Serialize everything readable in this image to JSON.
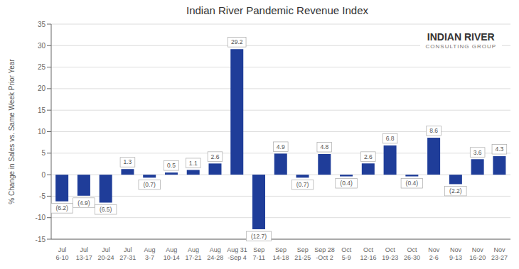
{
  "chart_data": {
    "type": "bar",
    "title": "Indian River Pandemic Revenue Index",
    "ylabel": "% Change in Sales vs. Same Week Prior Year",
    "categories": [
      "Jul\n6-10",
      "Jul\n13-17",
      "Jul\n20-24",
      "Jul\n27-31",
      "Aug\n3-7",
      "Aug\n10-14",
      "Aug\n17-21",
      "Aug\n24-28",
      "Aug 31\n-Sep 4",
      "Sep\n7-11",
      "Sep\n14-18",
      "Sep\n21-25",
      "Sep 28\n-Oct 2",
      "Oct\n5-9",
      "Oct\n12-16",
      "Oct\n19-23",
      "Oct\n26-30",
      "Nov\n2-6",
      "Nov\n9-13",
      "Nov\n16-20",
      "Nov\n23-27"
    ],
    "values": [
      -6.2,
      -4.9,
      -6.5,
      1.3,
      -0.7,
      0.5,
      1.1,
      2.6,
      29.2,
      -12.7,
      4.9,
      -0.7,
      4.8,
      -0.4,
      2.6,
      6.8,
      -0.4,
      8.6,
      -2.2,
      3.6,
      4.3
    ],
    "value_labels": [
      "(6.2)",
      "(4.9)",
      "(6.5)",
      "1.3",
      "(0.7)",
      "0.5",
      "1.1",
      "2.6",
      "29.2",
      "(12.7)",
      "4.9",
      "(0.7)",
      "4.8",
      "(0.4)",
      "2.6",
      "6.8",
      "(0.4)",
      "8.6",
      "(2.2)",
      "3.6",
      "4.3"
    ],
    "data_labels": true,
    "color": "#1F3D99",
    "ylim": [
      -15,
      35
    ],
    "yticks": [
      -15,
      -10,
      -5,
      0,
      5,
      10,
      15,
      20,
      25,
      30,
      35
    ],
    "grid": true,
    "annotations": [
      "INDIAN RIVER",
      "CONSULTING GROUP"
    ]
  }
}
